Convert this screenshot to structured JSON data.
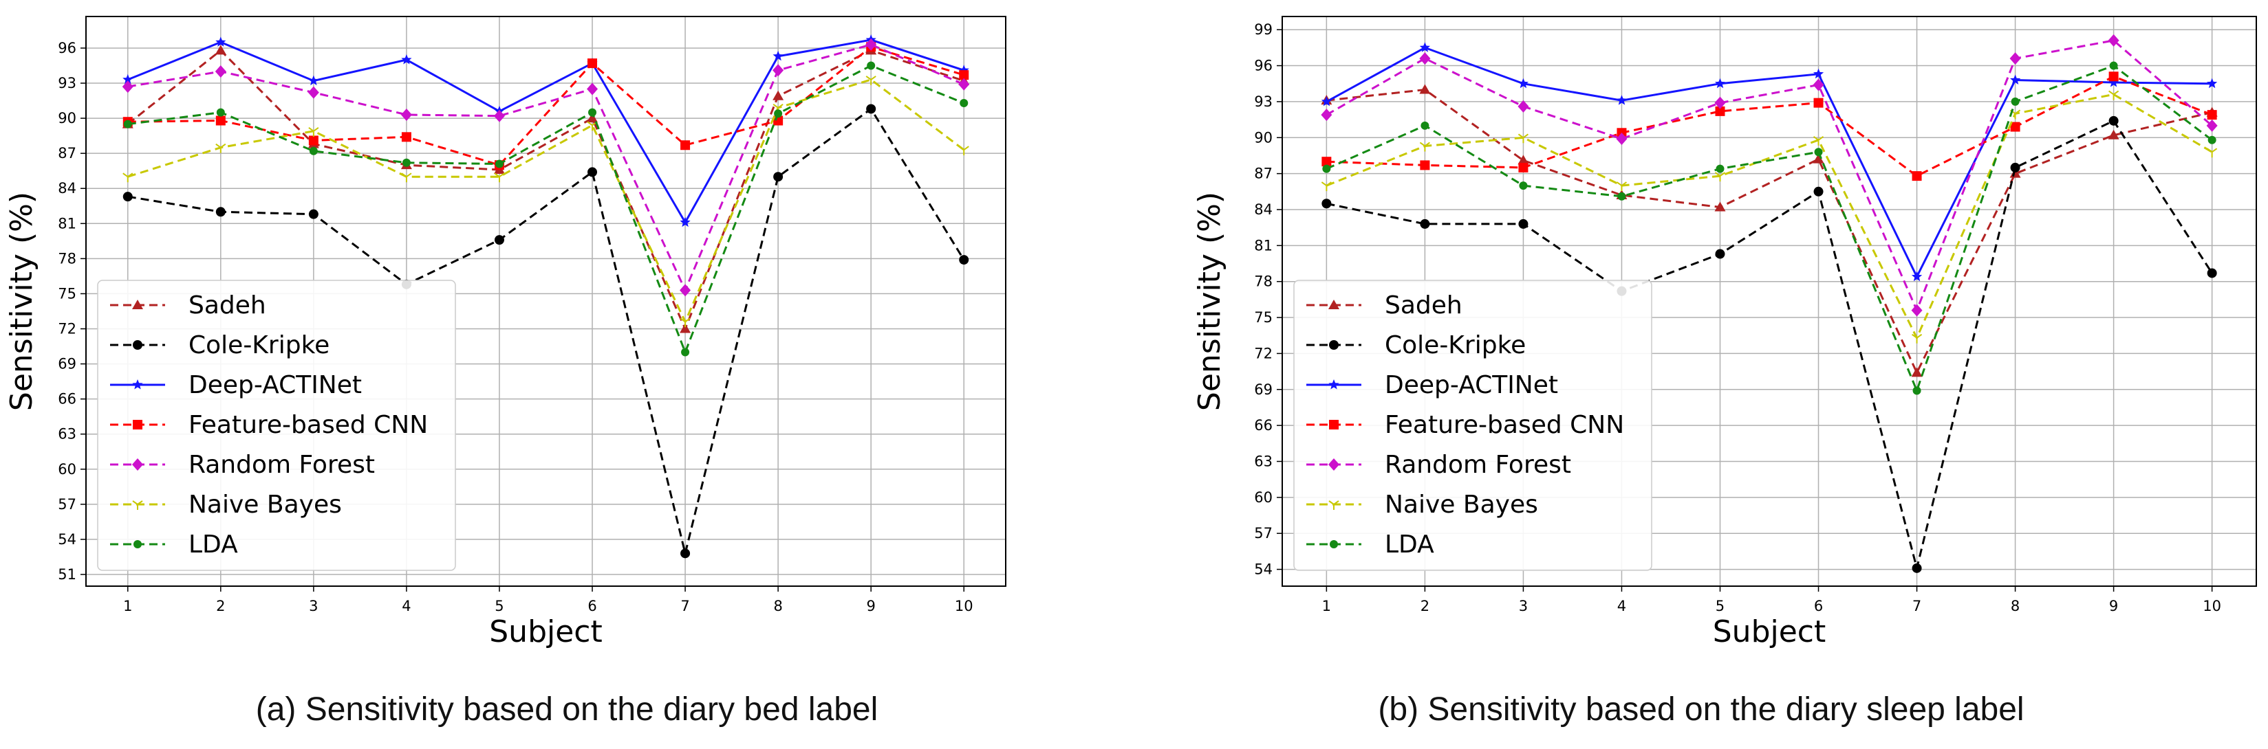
{
  "chart_data": [
    {
      "type": "line",
      "caption": "(a) Sensitivity based on the diary bed label",
      "xlabel": "Subject",
      "ylabel": "Sensitivity (%)",
      "x": [
        1,
        2,
        3,
        4,
        5,
        6,
        7,
        8,
        9,
        10
      ],
      "ylim": [
        50,
        98.7
      ],
      "yticks": [
        51,
        54,
        57,
        60,
        63,
        66,
        69,
        72,
        75,
        78,
        81,
        84,
        87,
        90,
        93,
        96
      ],
      "grid": true,
      "legend_position": "lower-left",
      "series": [
        {
          "name": "Sadeh",
          "color": "#b22222",
          "dash": "dashed",
          "marker": "triangle",
          "values": [
            89.5,
            95.8,
            87.8,
            86.0,
            85.6,
            90.0,
            72.0,
            91.9,
            95.8,
            93.2
          ]
        },
        {
          "name": "Cole-Kripke",
          "color": "#000000",
          "dash": "dashed",
          "marker": "circle",
          "values": [
            83.3,
            82.0,
            81.8,
            75.8,
            79.6,
            85.4,
            52.8,
            85.0,
            90.8,
            77.9
          ]
        },
        {
          "name": "Deep-ACTINet",
          "color": "#1414ff",
          "dash": "solid",
          "marker": "star",
          "values": [
            93.3,
            96.5,
            93.2,
            95.0,
            90.6,
            94.7,
            81.1,
            95.3,
            96.7,
            94.1
          ]
        },
        {
          "name": "Feature-based CNN",
          "color": "#ff0000",
          "dash": "dashed",
          "marker": "square",
          "values": [
            89.7,
            89.8,
            88.1,
            88.4,
            86.0,
            94.7,
            87.7,
            89.8,
            96.1,
            93.7
          ]
        },
        {
          "name": "Random Forest",
          "color": "#cc11cc",
          "dash": "dashed",
          "marker": "diamond",
          "values": [
            92.7,
            94.0,
            92.2,
            90.3,
            90.2,
            92.5,
            75.3,
            94.1,
            96.3,
            92.9
          ]
        },
        {
          "name": "Naive Bayes",
          "color": "#c8c800",
          "dash": "dashed",
          "marker": "tri",
          "values": [
            85.0,
            87.5,
            88.9,
            85.0,
            85.0,
            89.4,
            72.6,
            90.9,
            93.3,
            87.3
          ]
        },
        {
          "name": "LDA",
          "color": "#148a14",
          "dash": "dashed",
          "marker": "dot",
          "values": [
            89.5,
            90.5,
            87.2,
            86.2,
            86.1,
            90.5,
            70.0,
            90.4,
            94.5,
            91.3
          ]
        }
      ]
    },
    {
      "type": "line",
      "caption": "(b) Sensitivity based on the diary sleep label",
      "xlabel": "Subject",
      "ylabel": "Sensitivity (%)",
      "x": [
        1,
        2,
        3,
        4,
        5,
        6,
        7,
        8,
        9,
        10
      ],
      "ylim": [
        52.6,
        100.1
      ],
      "yticks": [
        54,
        57,
        60,
        63,
        66,
        69,
        72,
        75,
        78,
        81,
        84,
        87,
        90,
        93,
        96,
        99
      ],
      "grid": true,
      "legend_position": "lower-left",
      "series": [
        {
          "name": "Sadeh",
          "color": "#b22222",
          "dash": "dashed",
          "marker": "triangle",
          "values": [
            93.1,
            94.0,
            88.1,
            85.2,
            84.2,
            88.2,
            70.4,
            87.0,
            90.2,
            92.1
          ]
        },
        {
          "name": "Cole-Kripke",
          "color": "#000000",
          "dash": "dashed",
          "marker": "circle",
          "values": [
            84.5,
            82.8,
            82.8,
            77.2,
            80.3,
            85.5,
            54.1,
            87.5,
            91.4,
            78.7
          ]
        },
        {
          "name": "Deep-ACTINet",
          "color": "#1414ff",
          "dash": "solid",
          "marker": "star",
          "values": [
            93.0,
            97.5,
            94.5,
            93.1,
            94.5,
            95.3,
            78.4,
            94.8,
            94.6,
            94.5
          ]
        },
        {
          "name": "Feature-based CNN",
          "color": "#ff0000",
          "dash": "dashed",
          "marker": "square",
          "values": [
            88.0,
            87.7,
            87.5,
            90.4,
            92.2,
            92.9,
            86.8,
            90.9,
            95.1,
            91.9
          ]
        },
        {
          "name": "Random Forest",
          "color": "#cc11cc",
          "dash": "dashed",
          "marker": "diamond",
          "values": [
            91.9,
            96.6,
            92.6,
            89.9,
            92.9,
            94.4,
            75.6,
            96.6,
            98.1,
            91.0
          ]
        },
        {
          "name": "Naive Bayes",
          "color": "#c8c800",
          "dash": "dashed",
          "marker": "tri",
          "values": [
            86.0,
            89.3,
            90.0,
            86.0,
            86.8,
            89.8,
            73.3,
            92.0,
            93.6,
            88.8
          ]
        },
        {
          "name": "LDA",
          "color": "#148a14",
          "dash": "dashed",
          "marker": "dot",
          "values": [
            87.4,
            91.0,
            86.0,
            85.1,
            87.4,
            88.8,
            68.9,
            93.0,
            96.0,
            89.8
          ]
        }
      ]
    }
  ]
}
